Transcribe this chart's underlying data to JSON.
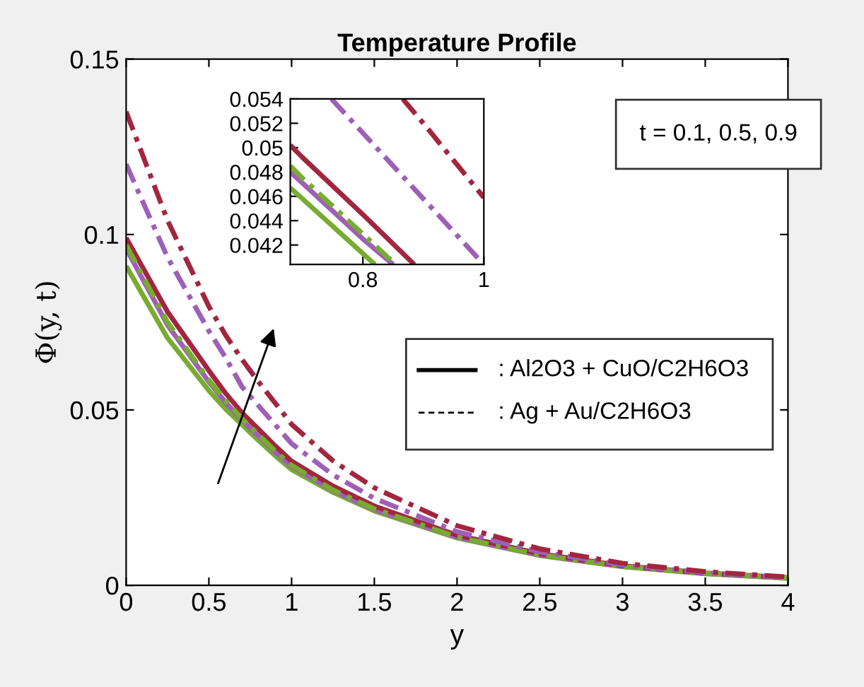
{
  "chart_data": [
    {
      "type": "line",
      "title": "Temperature Profile",
      "xlabel": "y",
      "ylabel": "Φ(y, t)",
      "x": [
        0,
        0.25,
        0.5,
        0.6,
        0.7,
        0.8,
        0.9,
        1,
        1.25,
        1.5,
        2,
        2.5,
        3,
        3.5,
        4
      ],
      "xlim": [
        0,
        4
      ],
      "xticks": [
        0,
        0.5,
        1,
        1.5,
        2,
        2.5,
        3,
        3.5,
        4
      ],
      "ylim": [
        0,
        0.15
      ],
      "yticks": [
        0,
        0.05,
        0.1,
        0.15
      ],
      "grid": false,
      "annotations": [
        "t = 0.1, 0.5, 0.9",
        ": Al2O3 + CuO/C2H6O3",
        ": Ag + Au/C2H6O3"
      ],
      "series": [
        {
          "color": "#77ac30",
          "line_style": "solid",
          "values": [
            0.091,
            0.0705,
            0.0555,
            0.0503,
            0.0458,
            0.0413,
            0.037,
            0.033,
            0.0265,
            0.0212,
            0.0135,
            0.0085,
            0.0053,
            0.0033,
            0.002
          ]
        },
        {
          "color": "#9e5fb8",
          "line_style": "solid",
          "values": [
            0.096,
            0.0742,
            0.058,
            0.0522,
            0.0471,
            0.0425,
            0.038,
            0.0339,
            0.027,
            0.0216,
            0.0137,
            0.0086,
            0.0054,
            0.0034,
            0.0021
          ]
        },
        {
          "color": "#a2263f",
          "line_style": "solid",
          "values": [
            0.099,
            0.078,
            0.0612,
            0.0548,
            0.0492,
            0.0445,
            0.0398,
            0.0354,
            0.0283,
            0.0226,
            0.0143,
            0.009,
            0.0056,
            0.0035,
            0.0022
          ]
        },
        {
          "color": "#77ac30",
          "line_style": "dashed",
          "values": [
            0.097,
            0.075,
            0.0585,
            0.0527,
            0.0475,
            0.0429,
            0.0383,
            0.0342,
            0.0272,
            0.0218,
            0.0138,
            0.0087,
            0.0054,
            0.0034,
            0.0021
          ]
        },
        {
          "color": "#9e5fb8",
          "line_style": "dashed",
          "values": [
            0.12,
            0.0935,
            0.0725,
            0.065,
            0.0566,
            0.0512,
            0.0458,
            0.0404,
            0.0315,
            0.0248,
            0.0153,
            0.0095,
            0.0058,
            0.0036,
            0.0022
          ]
        },
        {
          "color": "#a2263f",
          "line_style": "dashed",
          "values": [
            0.135,
            0.104,
            0.0795,
            0.0714,
            0.0644,
            0.058,
            0.052,
            0.0459,
            0.0355,
            0.0278,
            0.017,
            0.0104,
            0.0063,
            0.0039,
            0.0024
          ]
        }
      ]
    },
    {
      "type": "line",
      "xlim": [
        0.68,
        1.0
      ],
      "xticks": [
        0.8,
        1
      ],
      "ylim": [
        0.0404,
        0.054
      ],
      "yticks": [
        0.042,
        0.044,
        0.046,
        0.048,
        0.05,
        0.052,
        0.054
      ],
      "grid": false,
      "series": [
        {
          "color": "#77ac30",
          "line_style": "solid",
          "x": [
            0.68,
            0.7,
            0.8,
            0.82
          ],
          "values": [
            0.0467,
            0.0458,
            0.0413,
            0.0404
          ]
        },
        {
          "color": "#9e5fb8",
          "line_style": "solid",
          "x": [
            0.68,
            0.7,
            0.8,
            0.85
          ],
          "values": [
            0.048,
            0.0471,
            0.0425,
            0.0404
          ]
        },
        {
          "color": "#a2263f",
          "line_style": "solid",
          "x": [
            0.68,
            0.7,
            0.8,
            0.885
          ],
          "values": [
            0.0502,
            0.0492,
            0.0445,
            0.0404
          ]
        },
        {
          "color": "#77ac30",
          "line_style": "dashed",
          "x": [
            0.68,
            0.7,
            0.8,
            0.854
          ],
          "values": [
            0.0485,
            0.0475,
            0.0429,
            0.0404
          ]
        },
        {
          "color": "#9e5fb8",
          "line_style": "dashed",
          "x": [
            0.748,
            0.8,
            0.9,
            1.0
          ],
          "values": [
            0.054,
            0.0512,
            0.0458,
            0.0404
          ]
        },
        {
          "color": "#a2263f",
          "line_style": "dashed",
          "x": [
            0.866,
            0.9,
            1.0
          ],
          "values": [
            0.054,
            0.052,
            0.0459
          ]
        }
      ]
    }
  ]
}
